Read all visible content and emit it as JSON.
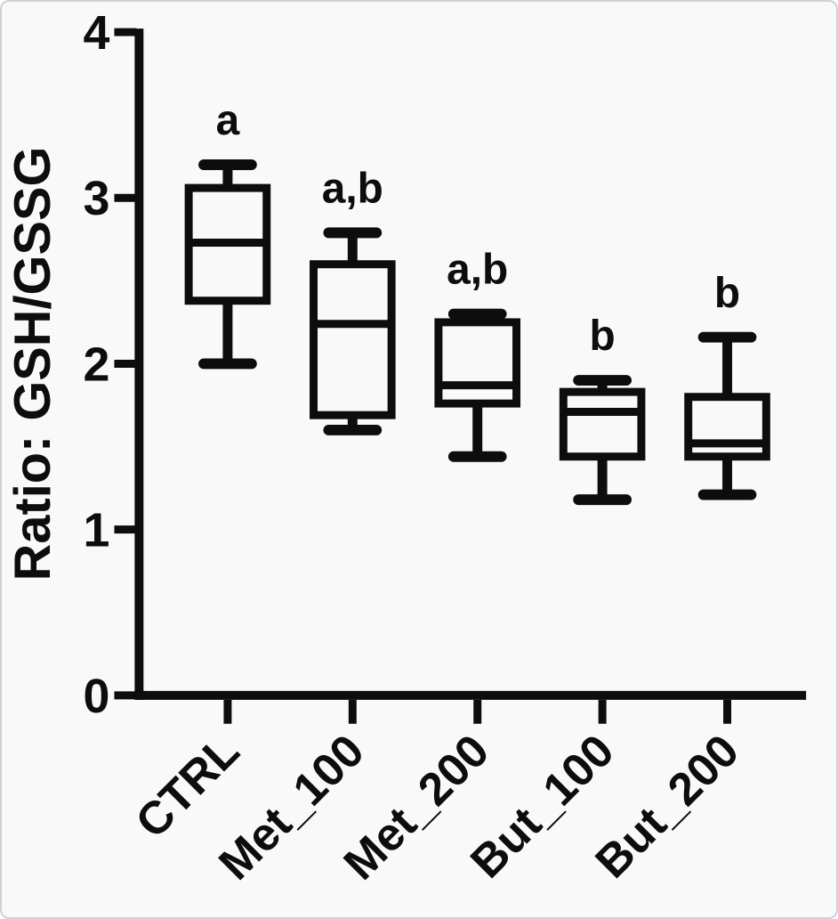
{
  "figure": {
    "background": "#f9f9fa",
    "ink": "#0d0d0d"
  },
  "chart_data": {
    "type": "box",
    "title": "",
    "xlabel": "",
    "ylabel": "Ratio: GSH/GSSG",
    "ylim": [
      0,
      4
    ],
    "yticks": [
      "4",
      "3",
      "2",
      "1",
      "0"
    ],
    "ytick_values": [
      4,
      3,
      2,
      1,
      0
    ],
    "grid": false,
    "legend": "none",
    "categories": [
      "CTRL",
      "Met_100",
      "Met_200",
      "But_100",
      "But_200"
    ],
    "boxes": [
      {
        "category": "CTRL",
        "min": 2.0,
        "q1": 2.38,
        "median": 2.73,
        "q3": 3.06,
        "max": 3.2,
        "letter": "a"
      },
      {
        "category": "Met_100",
        "min": 1.6,
        "q1": 1.69,
        "median": 2.24,
        "q3": 2.6,
        "max": 2.79,
        "letter": "a,b"
      },
      {
        "category": "Met_200",
        "min": 1.44,
        "q1": 1.76,
        "median": 1.87,
        "q3": 2.25,
        "max": 2.3,
        "letter": "a,b"
      },
      {
        "category": "But_100",
        "min": 1.18,
        "q1": 1.44,
        "median": 1.71,
        "q3": 1.83,
        "max": 1.9,
        "letter": "b"
      },
      {
        "category": "But_200",
        "min": 1.21,
        "q1": 1.44,
        "median": 1.52,
        "q3": 1.8,
        "max": 2.16,
        "letter": "b"
      }
    ]
  }
}
